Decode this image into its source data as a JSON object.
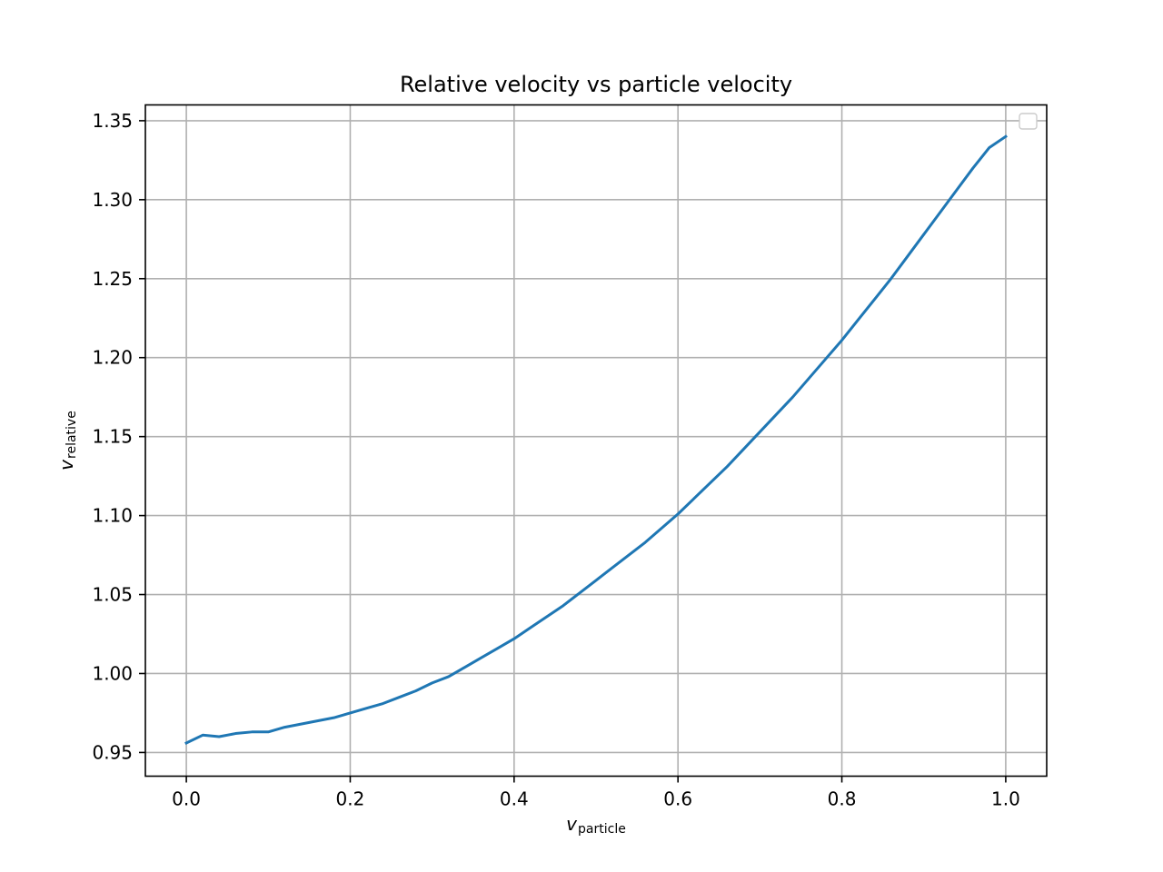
{
  "chart_data": {
    "type": "line",
    "title": "Relative velocity vs particle velocity",
    "xlabel": {
      "symbol": "v",
      "subscript": "particle"
    },
    "ylabel": {
      "symbol": "v",
      "subscript": "relative"
    },
    "xlim": [
      -0.05,
      1.05
    ],
    "ylim": [
      0.935,
      1.36
    ],
    "xticks": [
      0.0,
      0.2,
      0.4,
      0.6,
      0.8,
      1.0
    ],
    "xtick_labels": [
      "0.0",
      "0.2",
      "0.4",
      "0.6",
      "0.8",
      "1.0"
    ],
    "yticks": [
      0.95,
      1.0,
      1.05,
      1.1,
      1.15,
      1.2,
      1.25,
      1.3,
      1.35
    ],
    "ytick_labels": [
      "0.95",
      "1.00",
      "1.05",
      "1.10",
      "1.15",
      "1.20",
      "1.25",
      "1.30",
      "1.35"
    ],
    "grid": true,
    "legend": "upper-right (empty)",
    "color": "#1f77b4",
    "series": [
      {
        "x": [
          0.0,
          0.02,
          0.04,
          0.06,
          0.08,
          0.1,
          0.12,
          0.14,
          0.16,
          0.18,
          0.2,
          0.22,
          0.24,
          0.26,
          0.28,
          0.3,
          0.32,
          0.34,
          0.36,
          0.38,
          0.4,
          0.42,
          0.44,
          0.46,
          0.48,
          0.5,
          0.52,
          0.54,
          0.56,
          0.58,
          0.6,
          0.62,
          0.64,
          0.66,
          0.68,
          0.7,
          0.72,
          0.74,
          0.76,
          0.78,
          0.8,
          0.82,
          0.84,
          0.86,
          0.88,
          0.9,
          0.92,
          0.94,
          0.96,
          0.98,
          1.0
        ],
        "y": [
          0.956,
          0.961,
          0.96,
          0.962,
          0.963,
          0.963,
          0.966,
          0.968,
          0.97,
          0.972,
          0.975,
          0.978,
          0.981,
          0.985,
          0.989,
          0.994,
          0.998,
          1.004,
          1.01,
          1.016,
          1.022,
          1.029,
          1.036,
          1.043,
          1.051,
          1.059,
          1.067,
          1.075,
          1.083,
          1.092,
          1.101,
          1.111,
          1.121,
          1.131,
          1.142,
          1.153,
          1.164,
          1.175,
          1.187,
          1.199,
          1.211,
          1.224,
          1.237,
          1.25,
          1.264,
          1.278,
          1.292,
          1.306,
          1.32,
          1.333,
          1.34
        ]
      }
    ]
  }
}
